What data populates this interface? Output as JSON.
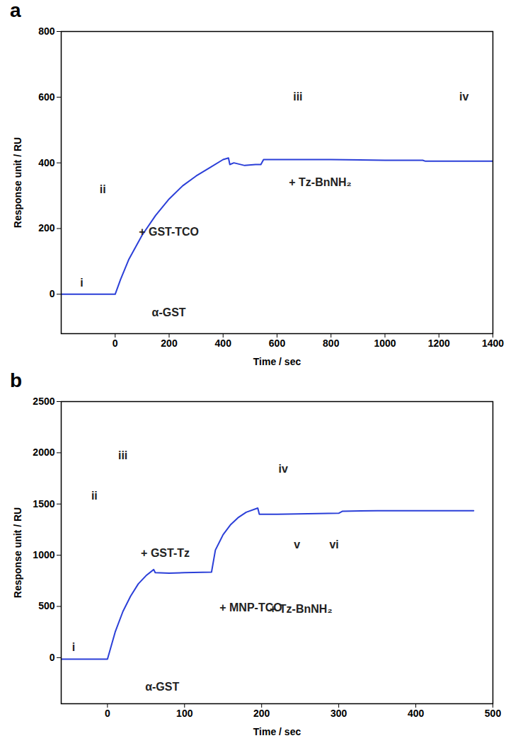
{
  "chart_data": [
    {
      "type": "line",
      "title": "a",
      "x_label": "Time / sec",
      "y_label": "Response unit / RU",
      "color": "#2b3fd8",
      "x": [
        -200,
        0,
        20,
        50,
        100,
        150,
        200,
        250,
        300,
        350,
        400,
        420,
        425,
        440,
        480,
        520,
        540,
        550,
        600,
        800,
        1000,
        1140,
        1150,
        1200,
        1400
      ],
      "values": [
        0,
        0,
        45,
        105,
        180,
        240,
        290,
        330,
        360,
        385,
        410,
        415,
        395,
        400,
        392,
        395,
        395,
        410,
        410,
        410,
        408,
        408,
        405,
        405,
        405
      ],
      "xlim": [
        -200,
        1400
      ],
      "ylim": [
        -120,
        800
      ],
      "xticks": [
        0,
        200,
        400,
        600,
        800,
        1000,
        1200,
        1400
      ],
      "yticks": [
        0,
        200,
        400,
        600,
        800
      ],
      "annotations": [
        {
          "text": "i",
          "x": -124,
          "y": 35
        },
        {
          "text": "α-GST",
          "x": 199,
          "y": -57
        },
        {
          "text": "ii",
          "x": -46,
          "y": 318
        },
        {
          "text": "+ GST-TCO",
          "x": 199,
          "y": 189
        },
        {
          "text": "iii",
          "x": 677,
          "y": 600
        },
        {
          "text": "+ Tz-BnNH₂",
          "x": 760,
          "y": 340
        },
        {
          "text": "iv",
          "x": 1293,
          "y": 600
        }
      ]
    },
    {
      "type": "line",
      "title": "b",
      "x_label": "Time / sec",
      "y_label": "Response unit / RU",
      "color": "#2b3fd8",
      "x": [
        -60,
        0,
        10,
        20,
        30,
        40,
        50,
        60,
        62,
        80,
        100,
        135,
        140,
        150,
        160,
        170,
        180,
        195,
        197,
        220,
        260,
        300,
        305,
        350,
        400,
        475
      ],
      "values": [
        -15,
        -15,
        250,
        450,
        600,
        720,
        800,
        860,
        830,
        825,
        830,
        835,
        1050,
        1200,
        1300,
        1370,
        1420,
        1460,
        1400,
        1400,
        1405,
        1410,
        1430,
        1435,
        1435,
        1435
      ],
      "xlim": [
        -60,
        500
      ],
      "ylim": [
        -450,
        2500
      ],
      "xticks": [
        0,
        100,
        200,
        300,
        400,
        500
      ],
      "yticks": [
        0,
        500,
        1000,
        1500,
        2000,
        2500
      ],
      "annotations": [
        {
          "text": "i",
          "x": -44,
          "y": 100
        },
        {
          "text": "α-GST",
          "x": 71,
          "y": -290
        },
        {
          "text": "ii",
          "x": -17,
          "y": 1580
        },
        {
          "text": "+ GST-Tz",
          "x": 75,
          "y": 1020
        },
        {
          "text": "iii",
          "x": 20,
          "y": 1970
        },
        {
          "text": "+ MNP-TCO",
          "x": 186,
          "y": 490
        },
        {
          "text": "iv",
          "x": 228,
          "y": 1838
        },
        {
          "text": "v",
          "x": 246,
          "y": 1100
        },
        {
          "text": "vi",
          "x": 294,
          "y": 1100
        },
        {
          "text": "+ Tz-BnNH₂",
          "x": 251,
          "y": 475
        }
      ]
    }
  ]
}
